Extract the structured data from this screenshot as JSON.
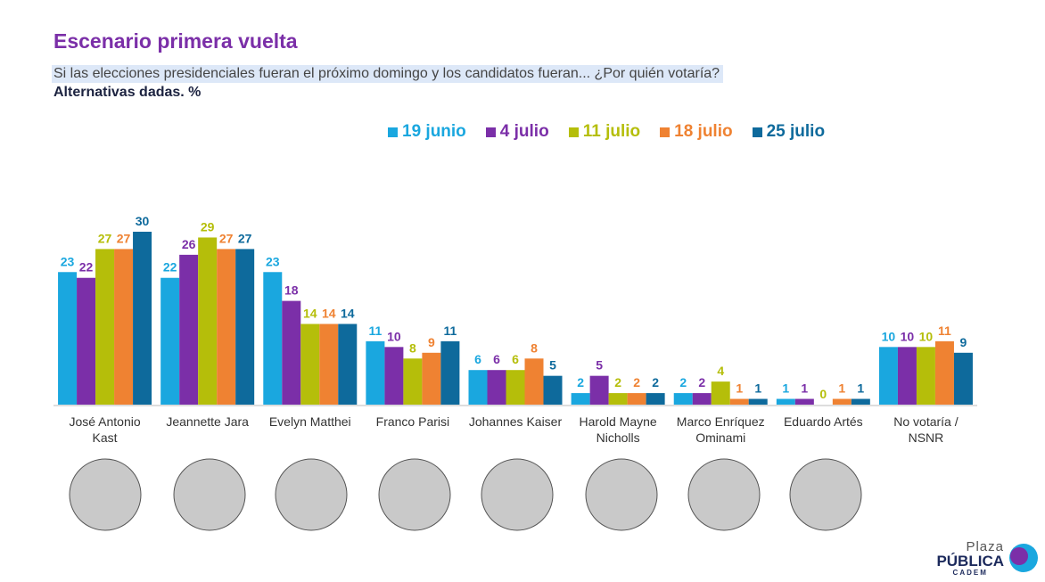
{
  "chart_data": {
    "type": "bar",
    "title": "Escenario primera vuelta",
    "subtitle": "Si las elecciones presidenciales fueran el próximo domingo y los candidatos fueran... ¿Por quién votaría?",
    "note": "Alternativas dadas. %",
    "categories": [
      "José Antonio Kast",
      "Jeannette Jara",
      "Evelyn Matthei",
      "Franco Parisi",
      "Johannes Kaiser",
      "Harold Mayne Nicholls",
      "Marco Enríquez Ominami",
      "Eduardo Artés",
      "No votaría / NSNR"
    ],
    "series": [
      {
        "name": "19 junio",
        "color": "#1aa7df",
        "values": [
          23,
          22,
          23,
          11,
          6,
          2,
          2,
          1,
          10
        ]
      },
      {
        "name": "4 julio",
        "color": "#7b2fa8",
        "values": [
          22,
          26,
          18,
          10,
          6,
          5,
          2,
          1,
          10
        ]
      },
      {
        "name": "11 julio",
        "color": "#b5be0a",
        "values": [
          27,
          29,
          14,
          8,
          6,
          2,
          4,
          0,
          10
        ]
      },
      {
        "name": "18 julio",
        "color": "#ef8232",
        "values": [
          27,
          27,
          14,
          9,
          8,
          2,
          1,
          1,
          11
        ]
      },
      {
        "name": "25 julio",
        "color": "#0e6a9c",
        "values": [
          30,
          27,
          14,
          11,
          5,
          2,
          1,
          1,
          9
        ]
      }
    ],
    "legend": "top"
  },
  "logo": {
    "line1": "Plaza",
    "line2": "PÚBLICA",
    "line3": "CADEM"
  }
}
